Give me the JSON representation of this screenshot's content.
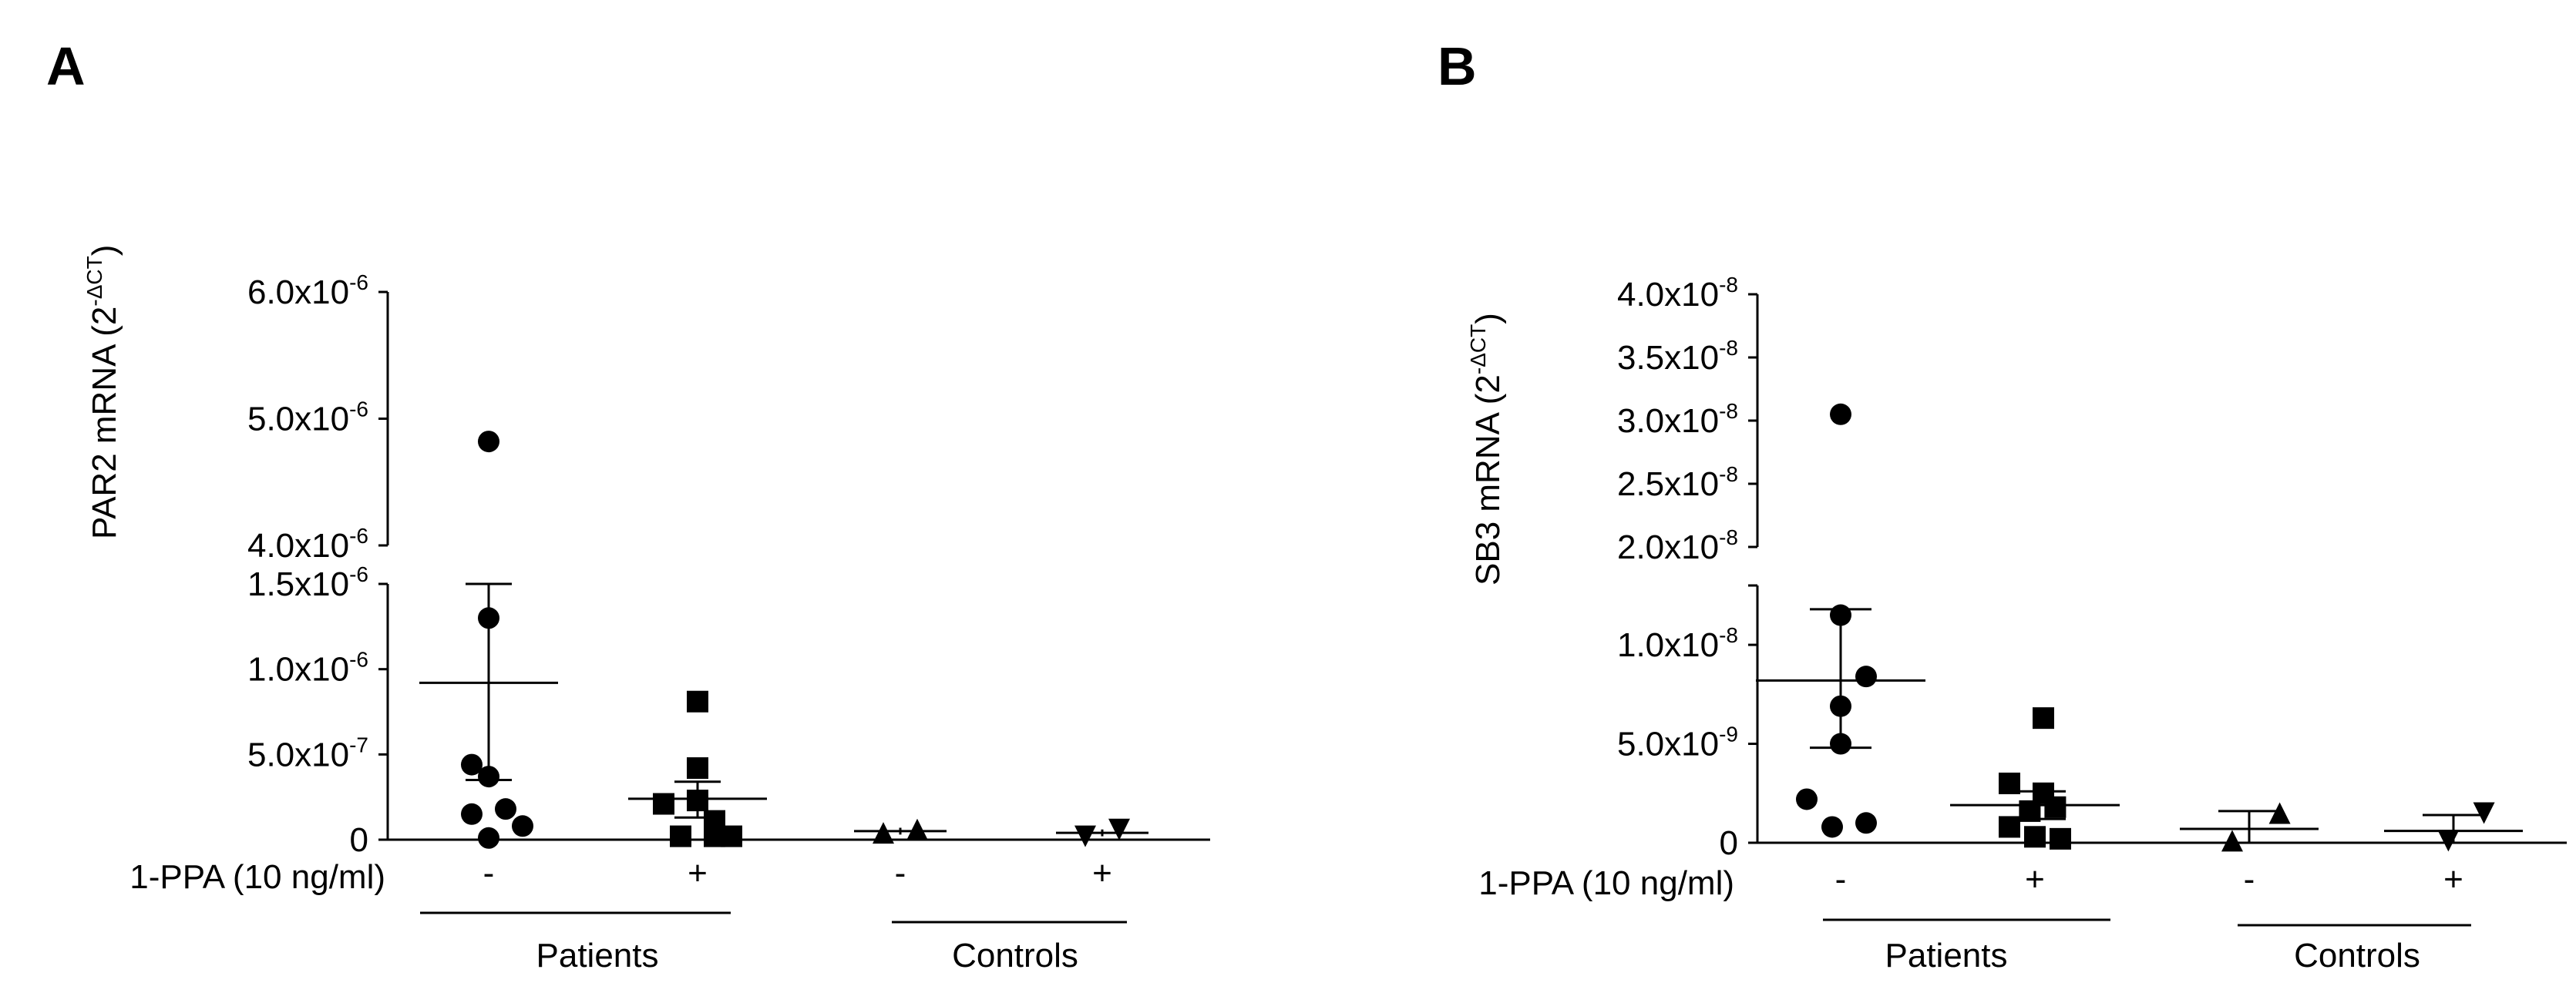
{
  "treatment_label": "1-PPA (10 ng/ml)",
  "condition_labels": [
    "-",
    "+",
    "-",
    "+"
  ],
  "groups": [
    "Patients",
    "Controls"
  ],
  "chart_data": [
    {
      "panel": "A",
      "type": "scatter",
      "ylabel_main": "PAR2 mRNA (2",
      "ylabel_sup": "-ΔCT",
      "ylabel_close": ")",
      "yaxis": {
        "broken": true,
        "lower_range": [
          0,
          1.5e-06
        ],
        "upper_range": [
          4e-06,
          6e-06
        ],
        "lower_ticks": [
          {
            "value": 0,
            "label": "0"
          },
          {
            "value": 5e-07,
            "label": "5.0x10",
            "exp": "-7"
          },
          {
            "value": 1e-06,
            "label": "1.0x10",
            "exp": "-6"
          },
          {
            "value": 1.5e-06,
            "label": "1.5x10",
            "exp": "-6"
          }
        ],
        "upper_ticks": [
          {
            "value": 4e-06,
            "label": "4.0x10",
            "exp": "-6"
          },
          {
            "value": 5e-06,
            "label": "5.0x10",
            "exp": "-6"
          },
          {
            "value": 6e-06,
            "label": "6.0x10",
            "exp": "-6"
          }
        ]
      },
      "series": [
        {
          "marker": "circle",
          "mean": 9.2e-07,
          "sd_low": 3.5e-07,
          "sd_high": 1.5e-06,
          "points": [
            {
              "jitter": 0,
              "y": 4.82e-06
            },
            {
              "jitter": 0,
              "y": 1.3e-06
            },
            {
              "jitter": -1,
              "y": 4.4e-07
            },
            {
              "jitter": 0,
              "y": 3.7e-07
            },
            {
              "jitter": -1,
              "y": 1.5e-07
            },
            {
              "jitter": 1,
              "y": 1.8e-07
            },
            {
              "jitter": 2,
              "y": 8e-08
            },
            {
              "jitter": 0,
              "y": 1e-08
            }
          ]
        },
        {
          "marker": "square",
          "mean": 2.4e-07,
          "sd_low": 1.3e-07,
          "sd_high": 3.4e-07,
          "points": [
            {
              "jitter": 0,
              "y": 8.1e-07
            },
            {
              "jitter": 0,
              "y": 4.2e-07
            },
            {
              "jitter": -2,
              "y": 2.1e-07
            },
            {
              "jitter": 0,
              "y": 2.3e-07
            },
            {
              "jitter": 1,
              "y": 1.1e-07
            },
            {
              "jitter": -1,
              "y": 2e-08
            },
            {
              "jitter": 1,
              "y": 2e-08
            },
            {
              "jitter": 2,
              "y": 2e-08
            }
          ]
        },
        {
          "marker": "triangle-up",
          "mean": 5e-08,
          "sd_low": 3e-08,
          "sd_high": 7e-08,
          "points": [
            {
              "jitter": -1,
              "y": 4e-08
            },
            {
              "jitter": 1,
              "y": 6e-08
            }
          ]
        },
        {
          "marker": "triangle-down",
          "mean": 4e-08,
          "sd_low": 2e-08,
          "sd_high": 6e-08,
          "points": [
            {
              "jitter": -1,
              "y": 2e-08
            },
            {
              "jitter": 1,
              "y": 6e-08
            }
          ]
        }
      ]
    },
    {
      "panel": "B",
      "type": "scatter",
      "ylabel_main": "SB3 mRNA (2",
      "ylabel_sup": "-ΔCT",
      "ylabel_close": ")",
      "yaxis": {
        "broken": true,
        "lower_range": [
          0,
          1.3e-08
        ],
        "upper_range": [
          2e-08,
          4e-08
        ],
        "lower_ticks": [
          {
            "value": 0,
            "label": "0"
          },
          {
            "value": 5e-09,
            "label": "5.0x10",
            "exp": "-9"
          },
          {
            "value": 1e-08,
            "label": "1.0x10",
            "exp": "-8"
          }
        ],
        "upper_ticks": [
          {
            "value": 2e-08,
            "label": "2.0x10",
            "exp": "-8"
          },
          {
            "value": 2.5e-08,
            "label": "2.5x10",
            "exp": "-8"
          },
          {
            "value": 3e-08,
            "label": "3.0x10",
            "exp": "-8"
          },
          {
            "value": 3.5e-08,
            "label": "3.5x10",
            "exp": "-8"
          },
          {
            "value": 4e-08,
            "label": "4.0x10",
            "exp": "-8"
          }
        ]
      },
      "series": [
        {
          "marker": "circle",
          "mean": 8.2e-09,
          "sd_low": 4.8e-09,
          "sd_high": 1.18e-08,
          "points": [
            {
              "jitter": 0,
              "y": 3.05e-08
            },
            {
              "jitter": 0,
              "y": 1.15e-08
            },
            {
              "jitter": 1.5,
              "y": 8.4e-09
            },
            {
              "jitter": 0,
              "y": 6.9e-09
            },
            {
              "jitter": 0,
              "y": 5e-09
            },
            {
              "jitter": -2,
              "y": 2.2e-09
            },
            {
              "jitter": 1.5,
              "y": 1e-09
            },
            {
              "jitter": -0.5,
              "y": 8e-10
            }
          ]
        },
        {
          "marker": "square",
          "mean": 1.9e-09,
          "sd_low": 1.2e-09,
          "sd_high": 2.6e-09,
          "points": [
            {
              "jitter": 0.5,
              "y": 6.3e-09
            },
            {
              "jitter": -1.5,
              "y": 3e-09
            },
            {
              "jitter": 0.5,
              "y": 2.5e-09
            },
            {
              "jitter": -0.3,
              "y": 1.6e-09
            },
            {
              "jitter": 1.2,
              "y": 1.8e-09
            },
            {
              "jitter": -1.5,
              "y": 8e-10
            },
            {
              "jitter": 0,
              "y": 3e-10
            },
            {
              "jitter": 1.5,
              "y": 2e-10
            }
          ]
        },
        {
          "marker": "triangle-up",
          "mean": 7e-10,
          "sd_low": 0,
          "sd_high": 1.6e-09,
          "points": [
            {
              "jitter": 1.8,
              "y": 1.5e-09
            },
            {
              "jitter": -1,
              "y": 1e-10
            }
          ]
        },
        {
          "marker": "triangle-down",
          "mean": 6e-10,
          "sd_low": 0,
          "sd_high": 1.4e-09,
          "points": [
            {
              "jitter": 1.8,
              "y": 1.5e-09
            },
            {
              "jitter": -0.3,
              "y": 1e-10
            }
          ]
        }
      ]
    }
  ]
}
